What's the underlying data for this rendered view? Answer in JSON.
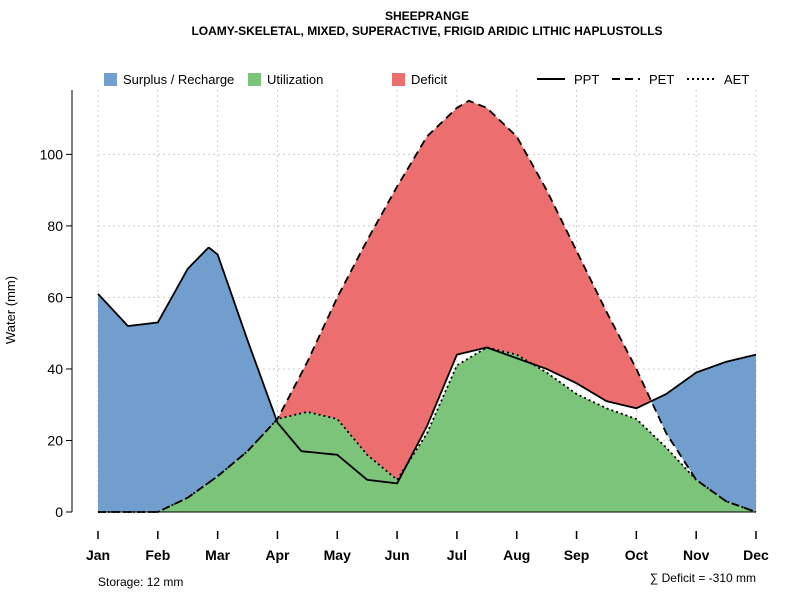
{
  "chart_data": {
    "type": "area",
    "title": "SHEEPRANGE",
    "subtitle": "LOAMY-SKELETAL, MIXED, SUPERACTIVE, FRIGID ARIDIC LITHIC HAPLUSTOLLS",
    "xlabel": "",
    "ylabel": "Water (mm)",
    "categories": [
      "Jan",
      "Feb",
      "Mar",
      "Apr",
      "May",
      "Jun",
      "Jul",
      "Aug",
      "Sep",
      "Oct",
      "Nov",
      "Dec"
    ],
    "ylim": [
      0,
      118
    ],
    "yticks": [
      0,
      20,
      40,
      60,
      80,
      100
    ],
    "grid": true,
    "legend_position": "top",
    "legend": {
      "fills": [
        {
          "name": "Surplus / Recharge",
          "color": "#729ECE"
        },
        {
          "name": "Utilization",
          "color": "#7DC47B"
        },
        {
          "name": "Deficit",
          "color": "#EC6E6E"
        }
      ],
      "lines": [
        {
          "name": "PPT",
          "style": "solid"
        },
        {
          "name": "PET",
          "style": "dashed"
        },
        {
          "name": "AET",
          "style": "dotted"
        }
      ]
    },
    "series": [
      {
        "name": "PPT",
        "x": [
          1,
          1.5,
          2,
          2.5,
          2.85,
          3,
          3.5,
          4,
          4.4,
          5,
          5.5,
          6,
          6.5,
          7,
          7.5,
          8,
          8.5,
          9,
          9.5,
          10,
          10.5,
          11,
          11.5,
          12
        ],
        "values": [
          61,
          52,
          53,
          68,
          74,
          72,
          48,
          25,
          17,
          16,
          9,
          8,
          24,
          44,
          46,
          43,
          40,
          36,
          31,
          29,
          33,
          39,
          42,
          44
        ]
      },
      {
        "name": "PET",
        "x": [
          1,
          1.5,
          2,
          2.5,
          3,
          3.5,
          4,
          4.5,
          5,
          5.5,
          6,
          6.5,
          7,
          7.2,
          7.5,
          8,
          8.5,
          9,
          9.5,
          10,
          10.5,
          11,
          11.5,
          12
        ],
        "values": [
          0,
          0,
          0,
          4,
          10,
          17,
          26,
          42,
          60,
          76,
          91,
          105,
          113,
          115,
          113,
          105,
          90,
          73,
          56,
          40,
          22,
          9,
          3,
          0
        ]
      },
      {
        "name": "AET",
        "x": [
          1,
          1.5,
          2,
          2.5,
          3,
          3.5,
          4,
          4.5,
          5,
          5.5,
          6,
          6.5,
          7,
          7.5,
          8,
          8.5,
          9,
          9.5,
          10,
          10.5,
          11,
          11.5,
          12
        ],
        "values": [
          0,
          0,
          0,
          4,
          10,
          17,
          26,
          28,
          26,
          16,
          9,
          22,
          41,
          46,
          44,
          39,
          33,
          29,
          26,
          18,
          9,
          3,
          0
        ]
      }
    ],
    "annotations": {
      "storage": "Storage: 12 mm",
      "deficit": "∑ Deficit = -310 mm"
    }
  }
}
